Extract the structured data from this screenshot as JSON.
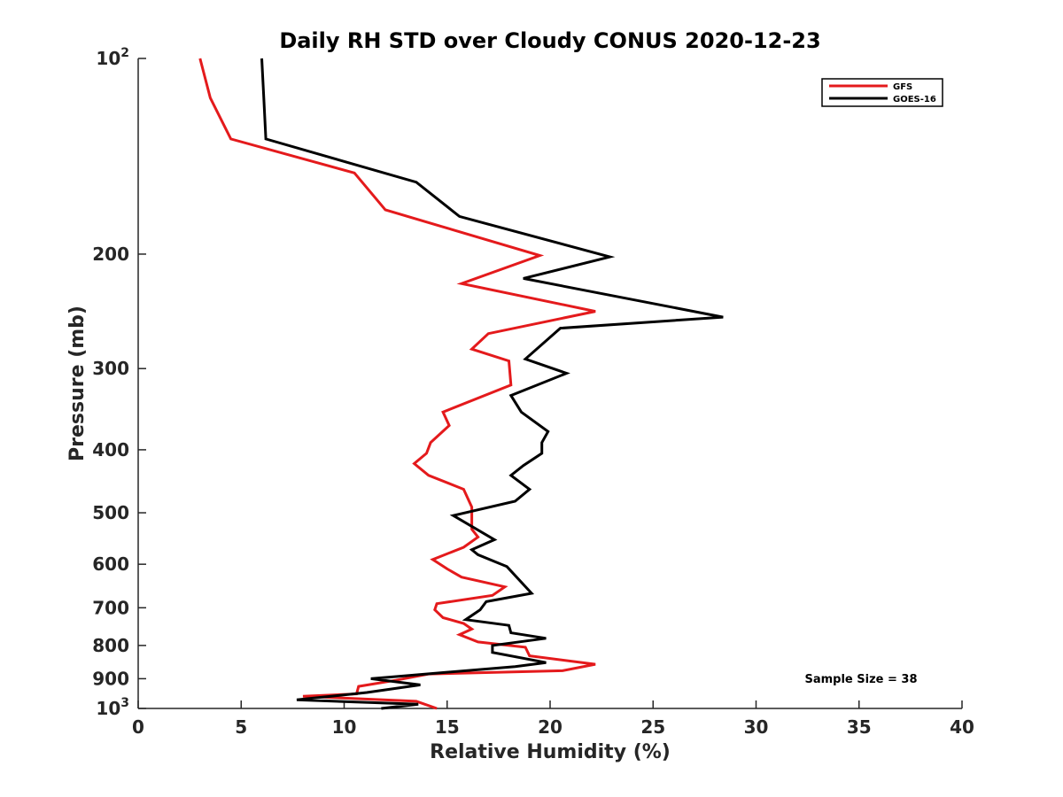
{
  "chart_data": {
    "type": "line",
    "title": "Daily RH STD over Cloudy CONUS 2020-12-23",
    "xlabel": "Relative Humidity (%)",
    "ylabel": "Pressure (mb)",
    "xlim": [
      0,
      40
    ],
    "ylim": [
      100,
      1000
    ],
    "y_scale": "log",
    "y_reversed": true,
    "x_ticks": [
      0,
      5,
      10,
      15,
      20,
      25,
      30,
      35,
      40
    ],
    "y_ticks": [
      {
        "value": 100,
        "base": "10",
        "exp": "2"
      },
      {
        "value": 200,
        "label": "200"
      },
      {
        "value": 300,
        "label": "300"
      },
      {
        "value": 400,
        "label": "400"
      },
      {
        "value": 500,
        "label": "500"
      },
      {
        "value": 600,
        "label": "600"
      },
      {
        "value": 700,
        "label": "700"
      },
      {
        "value": 800,
        "label": "800"
      },
      {
        "value": 900,
        "label": "900"
      },
      {
        "value": 1000,
        "base": "10",
        "exp": "3"
      }
    ],
    "grid": false,
    "legend_position": "top-right",
    "series": [
      {
        "name": "GFS",
        "color": "#e41a1c",
        "points": [
          [
            3.0,
            100
          ],
          [
            3.5,
            115
          ],
          [
            4.5,
            133
          ],
          [
            10.5,
            150
          ],
          [
            12.0,
            171
          ],
          [
            19.5,
            201
          ],
          [
            15.7,
            222
          ],
          [
            22.2,
            245
          ],
          [
            17.0,
            265
          ],
          [
            16.2,
            280
          ],
          [
            18.0,
            292
          ],
          [
            18.1,
            318
          ],
          [
            14.8,
            350
          ],
          [
            15.1,
            367
          ],
          [
            14.2,
            390
          ],
          [
            14.0,
            405
          ],
          [
            13.4,
            420
          ],
          [
            14.1,
            438
          ],
          [
            15.8,
            460
          ],
          [
            16.2,
            490
          ],
          [
            16.2,
            530
          ],
          [
            16.5,
            545
          ],
          [
            15.8,
            565
          ],
          [
            14.3,
            590
          ],
          [
            15.0,
            610
          ],
          [
            15.7,
            628
          ],
          [
            17.8,
            650
          ],
          [
            17.2,
            670
          ],
          [
            14.5,
            690
          ],
          [
            14.4,
            705
          ],
          [
            14.8,
            725
          ],
          [
            15.8,
            740
          ],
          [
            16.2,
            755
          ],
          [
            15.6,
            770
          ],
          [
            16.5,
            790
          ],
          [
            18.8,
            805
          ],
          [
            19.0,
            830
          ],
          [
            22.2,
            855
          ],
          [
            20.6,
            875
          ],
          [
            14.1,
            885
          ],
          [
            12.5,
            905
          ],
          [
            10.7,
            925
          ],
          [
            10.6,
            950
          ],
          [
            8.0,
            958
          ],
          [
            13.5,
            975
          ],
          [
            14.5,
            1000
          ]
        ]
      },
      {
        "name": "GOES-16",
        "color": "#000000",
        "points": [
          [
            6.0,
            100
          ],
          [
            6.1,
            115
          ],
          [
            6.2,
            133
          ],
          [
            13.5,
            155
          ],
          [
            15.6,
            175
          ],
          [
            22.9,
            202
          ],
          [
            18.7,
            218
          ],
          [
            28.4,
            250
          ],
          [
            20.5,
            260
          ],
          [
            18.8,
            290
          ],
          [
            20.8,
            305
          ],
          [
            18.1,
            330
          ],
          [
            18.6,
            350
          ],
          [
            19.9,
            375
          ],
          [
            19.6,
            390
          ],
          [
            19.6,
            405
          ],
          [
            18.7,
            423
          ],
          [
            18.1,
            438
          ],
          [
            19.0,
            460
          ],
          [
            18.3,
            480
          ],
          [
            15.3,
            505
          ],
          [
            17.3,
            550
          ],
          [
            16.2,
            570
          ],
          [
            16.5,
            580
          ],
          [
            17.9,
            605
          ],
          [
            19.1,
            665
          ],
          [
            16.9,
            685
          ],
          [
            16.6,
            705
          ],
          [
            15.9,
            730
          ],
          [
            18.0,
            745
          ],
          [
            18.1,
            765
          ],
          [
            19.8,
            780
          ],
          [
            17.2,
            800
          ],
          [
            17.2,
            820
          ],
          [
            19.8,
            850
          ],
          [
            18.3,
            862
          ],
          [
            11.3,
            900
          ],
          [
            13.7,
            920
          ],
          [
            11.1,
            945
          ],
          [
            7.7,
            970
          ],
          [
            13.6,
            985
          ],
          [
            11.8,
            1000
          ]
        ]
      }
    ],
    "annotations": [
      "Sample Size = 38"
    ]
  }
}
